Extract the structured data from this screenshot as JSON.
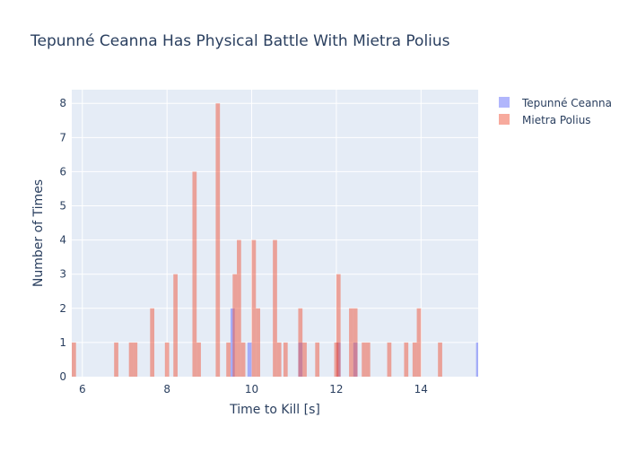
{
  "chart_data": {
    "type": "histogram",
    "title": "Tepunné Ceanna Has Physical Battle With Mietra Polius",
    "xlabel": "Time to Kill [s]",
    "ylabel": "Number of Times",
    "xlim": [
      5.75,
      15.35
    ],
    "ylim": [
      0,
      8.4
    ],
    "bin_width": 0.1,
    "x_ticks": [
      6,
      8,
      10,
      12,
      14
    ],
    "y_ticks": [
      0,
      1,
      2,
      3,
      4,
      5,
      6,
      7,
      8
    ],
    "grid": true,
    "legend_position": "top-right",
    "overlay": true,
    "series": [
      {
        "name": "Tepunné Ceanna",
        "color": "#636efa",
        "bins": [
          {
            "x0": 9.5,
            "count": 2
          },
          {
            "x0": 9.9,
            "count": 1
          },
          {
            "x0": 11.1,
            "count": 1
          },
          {
            "x0": 12.0,
            "count": 1
          },
          {
            "x0": 12.4,
            "count": 1
          },
          {
            "x0": 15.3,
            "count": 1
          }
        ]
      },
      {
        "name": "Mietra Polius",
        "color": "#ef553b",
        "bins": [
          {
            "x0": 5.75,
            "count": 1
          },
          {
            "x0": 6.75,
            "count": 1
          },
          {
            "x0": 7.1,
            "count": 1
          },
          {
            "x0": 7.2,
            "count": 1
          },
          {
            "x0": 7.6,
            "count": 2
          },
          {
            "x0": 7.95,
            "count": 1
          },
          {
            "x0": 8.15,
            "count": 3
          },
          {
            "x0": 8.6,
            "count": 6
          },
          {
            "x0": 8.7,
            "count": 1
          },
          {
            "x0": 9.15,
            "count": 8
          },
          {
            "x0": 9.4,
            "count": 1
          },
          {
            "x0": 9.55,
            "count": 3
          },
          {
            "x0": 9.65,
            "count": 4
          },
          {
            "x0": 9.75,
            "count": 1
          },
          {
            "x0": 10.0,
            "count": 4
          },
          {
            "x0": 10.1,
            "count": 2
          },
          {
            "x0": 10.5,
            "count": 4
          },
          {
            "x0": 10.6,
            "count": 1
          },
          {
            "x0": 10.75,
            "count": 1
          },
          {
            "x0": 11.1,
            "count": 2
          },
          {
            "x0": 11.2,
            "count": 1
          },
          {
            "x0": 11.5,
            "count": 1
          },
          {
            "x0": 11.95,
            "count": 1
          },
          {
            "x0": 12.0,
            "count": 3
          },
          {
            "x0": 12.3,
            "count": 2
          },
          {
            "x0": 12.4,
            "count": 2
          },
          {
            "x0": 12.6,
            "count": 1
          },
          {
            "x0": 12.7,
            "count": 1
          },
          {
            "x0": 13.2,
            "count": 1
          },
          {
            "x0": 13.6,
            "count": 1
          },
          {
            "x0": 13.8,
            "count": 1
          },
          {
            "x0": 13.9,
            "count": 2
          },
          {
            "x0": 14.4,
            "count": 1
          }
        ]
      }
    ]
  }
}
